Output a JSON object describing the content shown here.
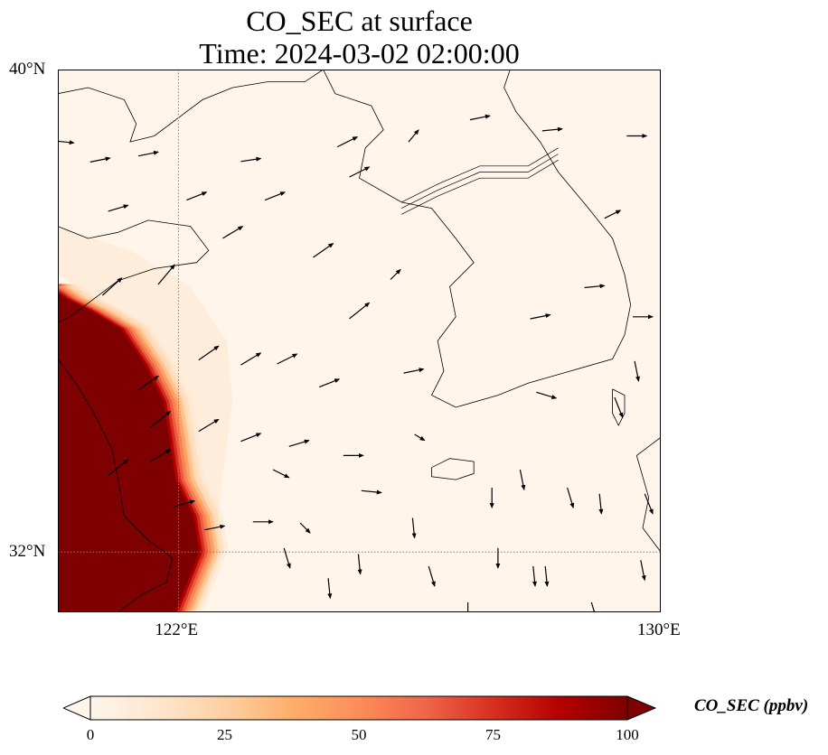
{
  "title": {
    "line1": "CO_SEC at surface",
    "line2": "Time: 2024-03-02 02:00:00"
  },
  "map": {
    "extent": {
      "lon_min": 120.0,
      "lon_max": 130.0,
      "lat_min": 31.0,
      "lat_max": 40.0
    },
    "gridlines": {
      "lon": [
        122
      ],
      "lat": [
        32
      ],
      "style": "dotted"
    },
    "lat_ticks": [
      {
        "value": 40,
        "label": "40°N"
      },
      {
        "value": 32,
        "label": "32°N"
      }
    ],
    "lon_ticks": [
      {
        "value": 122,
        "label": "122°E"
      },
      {
        "value": 130,
        "label": "130°E"
      }
    ],
    "colors": {
      "background": "#fff5eb",
      "max": "#7f0000",
      "coast": "#000000"
    },
    "plume_edge_polyline_lonlat": [
      [
        120.0,
        36.4
      ],
      [
        120.3,
        36.2
      ],
      [
        120.7,
        36.0
      ],
      [
        121.2,
        35.7
      ],
      [
        121.6,
        35.1
      ],
      [
        121.9,
        34.5
      ],
      [
        122.0,
        33.9
      ],
      [
        122.1,
        33.2
      ],
      [
        122.4,
        32.6
      ],
      [
        122.5,
        32.0
      ],
      [
        122.3,
        31.5
      ],
      [
        122.1,
        31.0
      ]
    ],
    "shanghai_shoreline_lonlat": [
      [
        120.0,
        35.2
      ],
      [
        120.3,
        34.8
      ],
      [
        120.6,
        34.3
      ],
      [
        120.9,
        33.7
      ],
      [
        121.0,
        33.2
      ],
      [
        121.1,
        32.6
      ],
      [
        121.5,
        32.2
      ],
      [
        121.9,
        31.9
      ],
      [
        121.8,
        31.5
      ],
      [
        121.4,
        31.3
      ],
      [
        121.0,
        31.0
      ]
    ],
    "land_outlines": [
      {
        "name": "Shandong-Liaodong-NorthChina",
        "points_lonlat": [
          [
            120.0,
            39.6
          ],
          [
            120.5,
            39.7
          ],
          [
            121.1,
            39.5
          ],
          [
            121.3,
            39.1
          ],
          [
            121.2,
            38.8
          ],
          [
            121.6,
            38.9
          ],
          [
            122.0,
            39.2
          ],
          [
            122.4,
            39.5
          ],
          [
            122.9,
            39.7
          ],
          [
            123.5,
            39.8
          ],
          [
            124.1,
            39.8
          ],
          [
            124.4,
            40.0
          ]
        ]
      },
      {
        "name": "Shandong-peninsula",
        "points_lonlat": [
          [
            120.0,
            37.4
          ],
          [
            120.5,
            37.2
          ],
          [
            121.0,
            37.3
          ],
          [
            121.5,
            37.5
          ],
          [
            122.2,
            37.4
          ],
          [
            122.5,
            37.0
          ],
          [
            122.3,
            36.8
          ],
          [
            121.6,
            36.7
          ],
          [
            121.0,
            36.5
          ],
          [
            120.6,
            36.2
          ],
          [
            120.2,
            35.9
          ],
          [
            120.0,
            35.8
          ]
        ]
      },
      {
        "name": "Korean-peninsula",
        "points_lonlat": [
          [
            124.4,
            40.0
          ],
          [
            124.6,
            39.6
          ],
          [
            125.2,
            39.4
          ],
          [
            125.4,
            39.0
          ],
          [
            125.1,
            38.7
          ],
          [
            125.0,
            38.2
          ],
          [
            125.7,
            37.8
          ],
          [
            126.2,
            37.7
          ],
          [
            126.6,
            37.2
          ],
          [
            126.9,
            36.8
          ],
          [
            126.5,
            36.4
          ],
          [
            126.6,
            35.9
          ],
          [
            126.3,
            35.5
          ],
          [
            126.4,
            35.0
          ],
          [
            126.2,
            34.6
          ],
          [
            126.6,
            34.4
          ],
          [
            127.3,
            34.6
          ],
          [
            127.8,
            34.8
          ],
          [
            128.5,
            35.0
          ],
          [
            129.2,
            35.2
          ],
          [
            129.4,
            35.6
          ],
          [
            129.5,
            36.1
          ],
          [
            129.4,
            36.6
          ],
          [
            129.2,
            37.2
          ],
          [
            128.8,
            37.7
          ],
          [
            128.3,
            38.3
          ],
          [
            128.0,
            38.8
          ],
          [
            127.6,
            39.3
          ],
          [
            127.4,
            39.7
          ],
          [
            127.5,
            40.0
          ]
        ]
      },
      {
        "name": "Jeju",
        "points_lonlat": [
          [
            126.2,
            33.4
          ],
          [
            126.5,
            33.55
          ],
          [
            126.9,
            33.5
          ],
          [
            126.9,
            33.3
          ],
          [
            126.6,
            33.2
          ],
          [
            126.2,
            33.25
          ],
          [
            126.2,
            33.4
          ]
        ]
      },
      {
        "name": "Tsushima",
        "points_lonlat": [
          [
            129.2,
            34.7
          ],
          [
            129.4,
            34.6
          ],
          [
            129.4,
            34.3
          ],
          [
            129.3,
            34.1
          ],
          [
            129.2,
            34.3
          ],
          [
            129.2,
            34.7
          ]
        ]
      },
      {
        "name": "Kyushu",
        "points_lonlat": [
          [
            129.6,
            33.6
          ],
          [
            130.0,
            33.9
          ],
          [
            130.0,
            32.0
          ],
          [
            129.7,
            32.4
          ],
          [
            129.8,
            32.9
          ],
          [
            129.6,
            33.6
          ]
        ]
      }
    ],
    "dmz_lines_lonlat": [
      [
        [
          125.7,
          37.7
        ],
        [
          126.3,
          38.0
        ],
        [
          127.0,
          38.3
        ],
        [
          127.8,
          38.3
        ],
        [
          128.3,
          38.6
        ]
      ],
      [
        [
          125.7,
          37.8
        ],
        [
          126.3,
          38.1
        ],
        [
          127.0,
          38.4
        ],
        [
          127.8,
          38.4
        ],
        [
          128.3,
          38.7
        ]
      ],
      [
        [
          125.7,
          37.6
        ],
        [
          126.3,
          37.9
        ],
        [
          127.0,
          38.2
        ],
        [
          127.8,
          38.2
        ],
        [
          128.3,
          38.5
        ]
      ]
    ],
    "wind_vectors": [
      {
        "lon": 120.1,
        "lat": 38.8,
        "u": 1.0,
        "v": -0.1
      },
      {
        "lon": 120.7,
        "lat": 38.5,
        "u": 1.0,
        "v": 0.2
      },
      {
        "lon": 121.5,
        "lat": 38.6,
        "u": 1.0,
        "v": 0.2
      },
      {
        "lon": 123.2,
        "lat": 38.5,
        "u": 1.0,
        "v": 0.15
      },
      {
        "lon": 124.8,
        "lat": 38.8,
        "u": 1.0,
        "v": 0.5
      },
      {
        "lon": 125.9,
        "lat": 38.9,
        "u": 0.5,
        "v": 0.6
      },
      {
        "lon": 127.0,
        "lat": 39.2,
        "u": 1.0,
        "v": 0.2
      },
      {
        "lon": 128.2,
        "lat": 39.0,
        "u": 1.0,
        "v": 0.1
      },
      {
        "lon": 129.6,
        "lat": 38.9,
        "u": 1.0,
        "v": 0.0
      },
      {
        "lon": 121.0,
        "lat": 37.7,
        "u": 1.0,
        "v": 0.3
      },
      {
        "lon": 122.3,
        "lat": 37.9,
        "u": 1.0,
        "v": 0.4
      },
      {
        "lon": 123.6,
        "lat": 37.9,
        "u": 1.0,
        "v": 0.4
      },
      {
        "lon": 125.0,
        "lat": 38.3,
        "u": 1.0,
        "v": 0.5
      },
      {
        "lon": 122.9,
        "lat": 37.3,
        "u": 1.0,
        "v": 0.6
      },
      {
        "lon": 124.4,
        "lat": 37.0,
        "u": 1.0,
        "v": 0.7
      },
      {
        "lon": 125.0,
        "lat": 36.0,
        "u": 1.0,
        "v": 0.8
      },
      {
        "lon": 121.8,
        "lat": 36.6,
        "u": 1.0,
        "v": 1.2
      },
      {
        "lon": 120.9,
        "lat": 36.4,
        "u": 1.0,
        "v": 0.9
      },
      {
        "lon": 122.5,
        "lat": 35.3,
        "u": 1.0,
        "v": 0.7
      },
      {
        "lon": 123.2,
        "lat": 35.2,
        "u": 1.0,
        "v": 0.6
      },
      {
        "lon": 123.8,
        "lat": 35.2,
        "u": 1.0,
        "v": 0.5
      },
      {
        "lon": 124.5,
        "lat": 34.8,
        "u": 1.0,
        "v": 0.4
      },
      {
        "lon": 125.9,
        "lat": 35.0,
        "u": 1.0,
        "v": 0.2
      },
      {
        "lon": 121.5,
        "lat": 34.8,
        "u": 1.0,
        "v": 0.7
      },
      {
        "lon": 121.7,
        "lat": 34.2,
        "u": 1.0,
        "v": 0.8
      },
      {
        "lon": 122.5,
        "lat": 34.1,
        "u": 1.0,
        "v": 0.6
      },
      {
        "lon": 123.2,
        "lat": 33.9,
        "u": 1.0,
        "v": 0.4
      },
      {
        "lon": 124.0,
        "lat": 33.8,
        "u": 1.0,
        "v": 0.3
      },
      {
        "lon": 121.0,
        "lat": 33.4,
        "u": 1.0,
        "v": 0.8
      },
      {
        "lon": 121.7,
        "lat": 33.6,
        "u": 1.0,
        "v": 0.6
      },
      {
        "lon": 122.1,
        "lat": 32.8,
        "u": 1.0,
        "v": 0.3
      },
      {
        "lon": 122.6,
        "lat": 32.4,
        "u": 1.0,
        "v": 0.2
      },
      {
        "lon": 123.4,
        "lat": 32.5,
        "u": 1.0,
        "v": 0.0
      },
      {
        "lon": 124.1,
        "lat": 32.4,
        "u": 0.5,
        "v": -0.5
      },
      {
        "lon": 124.9,
        "lat": 33.6,
        "u": 1.0,
        "v": 0.0
      },
      {
        "lon": 125.2,
        "lat": 33.0,
        "u": 1.0,
        "v": -0.1
      },
      {
        "lon": 123.7,
        "lat": 33.3,
        "u": 0.8,
        "v": -0.4
      },
      {
        "lon": 126.0,
        "lat": 33.9,
        "u": 0.5,
        "v": -0.3
      },
      {
        "lon": 123.8,
        "lat": 31.9,
        "u": 0.3,
        "v": -1.0
      },
      {
        "lon": 124.5,
        "lat": 31.4,
        "u": 0.1,
        "v": -1.0
      },
      {
        "lon": 125.0,
        "lat": 31.8,
        "u": 0.1,
        "v": -1.0
      },
      {
        "lon": 126.2,
        "lat": 31.6,
        "u": 0.3,
        "v": -1.0
      },
      {
        "lon": 127.3,
        "lat": 31.9,
        "u": 0.0,
        "v": -1.0
      },
      {
        "lon": 127.9,
        "lat": 31.6,
        "u": 0.1,
        "v": -1.0
      },
      {
        "lon": 128.1,
        "lat": 31.6,
        "u": 0.1,
        "v": -1.0
      },
      {
        "lon": 126.8,
        "lat": 31.0,
        "u": 0.0,
        "v": -1.0
      },
      {
        "lon": 128.9,
        "lat": 31.0,
        "u": 0.3,
        "v": -1.0
      },
      {
        "lon": 129.7,
        "lat": 31.7,
        "u": 0.2,
        "v": -1.0
      },
      {
        "lon": 125.9,
        "lat": 32.4,
        "u": 0.1,
        "v": -1.0
      },
      {
        "lon": 127.2,
        "lat": 32.9,
        "u": 0.0,
        "v": -1.0
      },
      {
        "lon": 127.7,
        "lat": 33.2,
        "u": 0.2,
        "v": -1.0
      },
      {
        "lon": 128.5,
        "lat": 32.9,
        "u": 0.3,
        "v": -1.0
      },
      {
        "lon": 129.0,
        "lat": 32.8,
        "u": 0.1,
        "v": -1.0
      },
      {
        "lon": 129.8,
        "lat": 32.8,
        "u": 0.4,
        "v": -1.0
      },
      {
        "lon": 129.3,
        "lat": 34.4,
        "u": 0.4,
        "v": -1.0
      },
      {
        "lon": 129.7,
        "lat": 35.9,
        "u": 1.0,
        "v": 0.0
      },
      {
        "lon": 128.9,
        "lat": 36.4,
        "u": 1.0,
        "v": 0.1
      },
      {
        "lon": 128.0,
        "lat": 35.9,
        "u": 1.0,
        "v": 0.2
      },
      {
        "lon": 129.6,
        "lat": 35.0,
        "u": 0.2,
        "v": -1.0
      },
      {
        "lon": 128.1,
        "lat": 34.6,
        "u": 1.0,
        "v": -0.3
      },
      {
        "lon": 129.2,
        "lat": 37.6,
        "u": 0.8,
        "v": 0.4
      },
      {
        "lon": 125.6,
        "lat": 36.6,
        "u": 0.5,
        "v": 0.5
      }
    ]
  },
  "colorbar": {
    "label": "CO_SEC (ppbv)",
    "vmin": 0,
    "vmax": 100,
    "ticks": [
      {
        "value": 0,
        "label": "0"
      },
      {
        "value": 25,
        "label": "25"
      },
      {
        "value": 50,
        "label": "50"
      },
      {
        "value": 75,
        "label": "75"
      },
      {
        "value": 100,
        "label": "100"
      }
    ],
    "cmap": [
      "#fff5eb",
      "#fee6ce",
      "#fdd0a2",
      "#fdae6b",
      "#fc8d59",
      "#ef6548",
      "#d7301f",
      "#b30000",
      "#7f0000"
    ],
    "extend": "both"
  }
}
